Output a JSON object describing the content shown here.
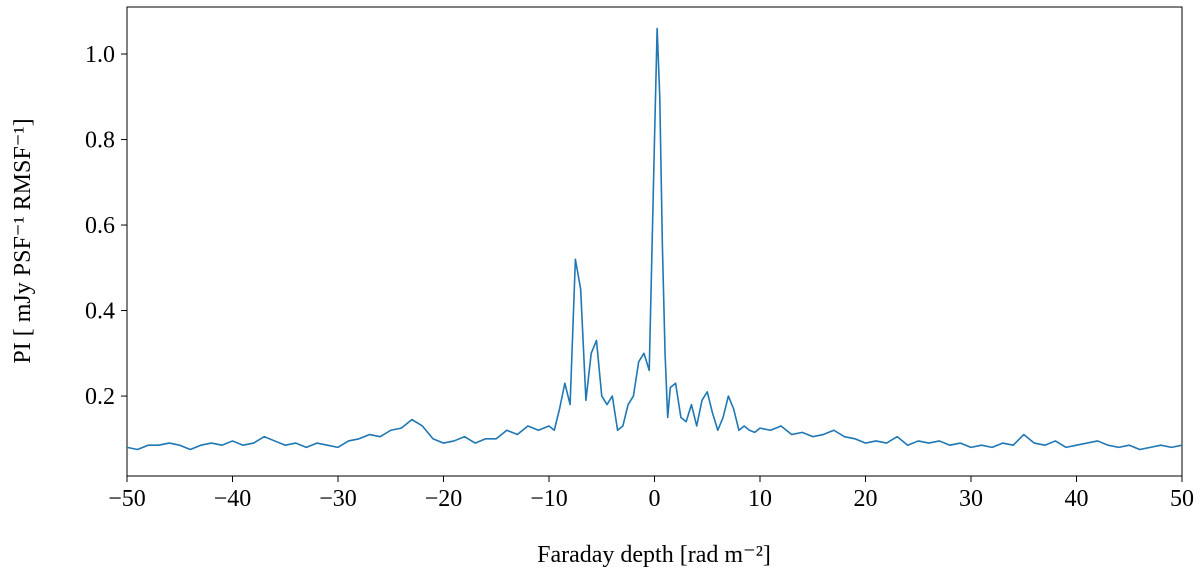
{
  "chart_data": {
    "type": "line",
    "xlabel": "Faraday depth [rad m⁻²]",
    "ylabel": "PI [ mJy PSF⁻¹ RMSF⁻¹]",
    "xlim": [
      -50,
      50
    ],
    "ylim": [
      0.013,
      1.11
    ],
    "xticks": [
      {
        "value": -50,
        "label": "−50"
      },
      {
        "value": -40,
        "label": "−40"
      },
      {
        "value": -30,
        "label": "−30"
      },
      {
        "value": -20,
        "label": "−20"
      },
      {
        "value": -10,
        "label": "−10"
      },
      0,
      10,
      20,
      30,
      40,
      50
    ],
    "yticks": [
      0.2,
      0.4,
      0.6,
      0.8,
      {
        "value": 1.0,
        "label": "1.0"
      }
    ],
    "grid": false,
    "x": [
      -50,
      -49,
      -48,
      -47,
      -46,
      -45,
      -44,
      -43,
      -42,
      -41,
      -40,
      -39,
      -38,
      -37,
      -36,
      -35,
      -34,
      -33,
      -32,
      -31,
      -30,
      -29,
      -28,
      -27,
      -26,
      -25,
      -24,
      -23,
      -22,
      -21,
      -20,
      -19,
      -18,
      -17,
      -16,
      -15,
      -14,
      -13,
      -12,
      -11,
      -10,
      -9.5,
      -9,
      -8.5,
      -8,
      -7.5,
      -7,
      -6.5,
      -6,
      -5.5,
      -5,
      -4.5,
      -4,
      -3.5,
      -3,
      -2.5,
      -2,
      -1.5,
      -1,
      -0.5,
      0,
      0.25,
      0.5,
      0.75,
      1,
      1.25,
      1.5,
      2,
      2.5,
      3,
      3.5,
      4,
      4.5,
      5,
      5.5,
      6,
      6.5,
      7,
      7.5,
      8,
      8.5,
      9,
      9.5,
      10,
      11,
      12,
      13,
      14,
      15,
      16,
      17,
      18,
      19,
      20,
      21,
      22,
      23,
      24,
      25,
      26,
      27,
      28,
      29,
      30,
      31,
      32,
      33,
      34,
      35,
      36,
      37,
      38,
      39,
      40,
      41,
      42,
      43,
      44,
      45,
      46,
      47,
      48,
      49,
      50
    ],
    "series": [
      {
        "name": "PI",
        "color": "#1f77b4",
        "values": [
          0.08,
          0.075,
          0.085,
          0.085,
          0.09,
          0.085,
          0.075,
          0.085,
          0.09,
          0.085,
          0.095,
          0.085,
          0.09,
          0.105,
          0.095,
          0.085,
          0.09,
          0.08,
          0.09,
          0.085,
          0.08,
          0.095,
          0.1,
          0.11,
          0.105,
          0.12,
          0.125,
          0.145,
          0.13,
          0.1,
          0.09,
          0.095,
          0.105,
          0.09,
          0.1,
          0.1,
          0.12,
          0.11,
          0.13,
          0.12,
          0.13,
          0.12,
          0.17,
          0.23,
          0.18,
          0.52,
          0.45,
          0.19,
          0.3,
          0.33,
          0.2,
          0.18,
          0.2,
          0.12,
          0.13,
          0.18,
          0.2,
          0.28,
          0.3,
          0.26,
          0.8,
          1.06,
          0.9,
          0.55,
          0.3,
          0.15,
          0.22,
          0.23,
          0.15,
          0.14,
          0.18,
          0.13,
          0.19,
          0.21,
          0.16,
          0.12,
          0.15,
          0.2,
          0.17,
          0.12,
          0.13,
          0.12,
          0.115,
          0.125,
          0.12,
          0.13,
          0.11,
          0.115,
          0.105,
          0.11,
          0.12,
          0.105,
          0.1,
          0.09,
          0.095,
          0.09,
          0.105,
          0.085,
          0.095,
          0.09,
          0.095,
          0.085,
          0.09,
          0.08,
          0.085,
          0.08,
          0.09,
          0.085,
          0.11,
          0.09,
          0.085,
          0.095,
          0.08,
          0.085,
          0.09,
          0.095,
          0.085,
          0.08,
          0.085,
          0.075,
          0.08,
          0.085,
          0.08,
          0.085
        ]
      }
    ]
  }
}
